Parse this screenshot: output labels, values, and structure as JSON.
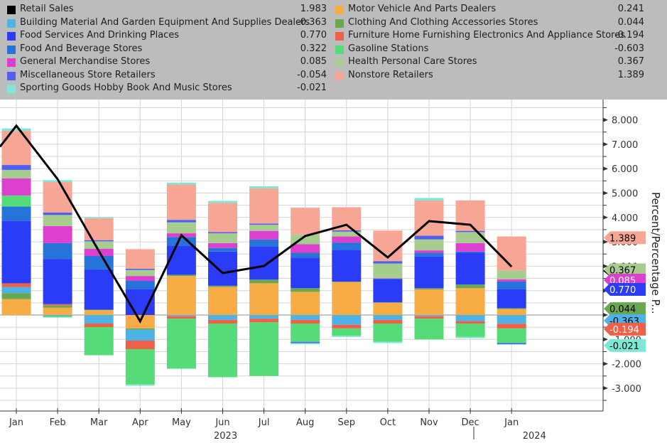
{
  "chart_data": {
    "type": "bar",
    "subtype": "stacked-bar-with-line",
    "title": "",
    "ylabel": "Percent/Percentage P...",
    "xlabel": "",
    "ylim": [
      -3.9,
      8.8
    ],
    "yticks": [
      -3,
      -2,
      -1,
      0,
      1,
      2,
      3,
      4,
      5,
      6,
      7,
      8
    ],
    "ytick_labels": [
      "-3.000",
      "-2.000",
      "-1.000",
      "0.000",
      "1.000",
      "2.000",
      "3.000",
      "4.000",
      "5.000",
      "6.000",
      "7.000",
      "8.000"
    ],
    "grid": true,
    "legend_position": "top",
    "categories": [
      "Jan",
      "Feb",
      "Mar",
      "Apr",
      "May",
      "Jun",
      "Jul",
      "Aug",
      "Sep",
      "Oct",
      "Nov",
      "Dec",
      "Jan"
    ],
    "year_labels": [
      {
        "label": "2023",
        "at_index": 5.5
      },
      {
        "label": "2024",
        "at_index": 13
      }
    ],
    "line": {
      "name": "Retail Sales",
      "color": "#000000",
      "latest": "1.983",
      "values": [
        7.76,
        5.57,
        2.62,
        -0.26,
        3.27,
        1.72,
        2.01,
        3.24,
        3.7,
        2.36,
        3.85,
        3.7,
        1.98
      ]
    },
    "series": [
      {
        "name": "Motor Vehicle And Parts Dealers",
        "color": "#f8ac46",
        "latest": "0.241",
        "flag_text_color": "#000000",
        "values": [
          0.65,
          0.3,
          0.2,
          -0.55,
          1.6,
          1.15,
          1.3,
          0.95,
          1.35,
          0.5,
          1.05,
          1.1,
          0.24
        ]
      },
      {
        "name": "Clothing And Clothing Accessories Stores",
        "color": "#6aa84f",
        "latest": "0.044",
        "flag_text_color": "#000000",
        "values": [
          0.25,
          0.1,
          0.02,
          -0.05,
          0.05,
          0.05,
          0.15,
          0.15,
          0.02,
          0.02,
          0.05,
          0.15,
          0.04
        ]
      },
      {
        "name": "Building Material And Garden Equipment And Supplies Dealers",
        "color": "#4db3e6",
        "latest": "-0.363",
        "flag_text_color": "#000000",
        "values": [
          0.25,
          -0.05,
          -0.35,
          -0.45,
          -0.05,
          -0.2,
          -0.15,
          -0.2,
          -0.4,
          -0.2,
          -0.05,
          -0.25,
          -0.36
        ]
      },
      {
        "name": "Furniture Home Furnishing Electronics And Appliance Stores",
        "color": "#ef6048",
        "latest": "-0.194",
        "flag_text_color": "#ffffff",
        "values": [
          0.15,
          0.05,
          -0.15,
          -0.35,
          -0.1,
          -0.15,
          -0.15,
          -0.15,
          -0.15,
          -0.15,
          -0.1,
          -0.1,
          -0.19
        ]
      },
      {
        "name": "Food Services And Drinking Places",
        "color": "#2a3cf5",
        "latest": "0.770",
        "flag_text_color": "#ffffff",
        "values": [
          2.55,
          1.85,
          1.65,
          1.05,
          1.2,
          1.4,
          1.35,
          1.25,
          1.3,
          0.95,
          1.3,
          1.3,
          0.77
        ]
      },
      {
        "name": "Food And Beverage Stores",
        "color": "#2673d9",
        "latest": "0.322",
        "flag_text_color": "#ffffff",
        "values": [
          0.6,
          0.65,
          0.55,
          0.35,
          0.35,
          0.15,
          0.3,
          0.2,
          0.3,
          0.02,
          0.15,
          0.05,
          0.32
        ]
      },
      {
        "name": "Gasoline Stations",
        "color": "#55dc78",
        "latest": "-0.603",
        "flag_text_color": "#000000",
        "values": [
          0.45,
          -0.05,
          -1.15,
          -1.45,
          -2.05,
          -2.2,
          -2.2,
          -0.75,
          -0.3,
          -0.75,
          -0.85,
          -0.55,
          -0.6
        ]
      },
      {
        "name": "General Merchandise Stores",
        "color": "#dd3fcf",
        "latest": "0.085",
        "flag_text_color": "#ffffff",
        "values": [
          0.7,
          0.7,
          0.3,
          0.2,
          0.15,
          0.2,
          0.35,
          0.35,
          0.25,
          0.02,
          0.1,
          0.35,
          0.09
        ]
      },
      {
        "name": "Health Personal Care Stores",
        "color": "#a6cc8e",
        "latest": "0.367",
        "flag_text_color": "#000000",
        "values": [
          0.35,
          0.45,
          0.3,
          0.25,
          0.45,
          0.4,
          0.25,
          0.4,
          0.2,
          0.6,
          0.45,
          0.45,
          0.37
        ]
      },
      {
        "name": "Miscellaneous Store Retailers",
        "color": "#4f5ff0",
        "latest": "-0.054",
        "flag_text_color": "#ffffff",
        "values": [
          0.2,
          0.1,
          0.05,
          0.05,
          0.1,
          0.05,
          0.05,
          -0.05,
          0.05,
          0.1,
          0.15,
          0.05,
          -0.05
        ]
      },
      {
        "name": "Nonstore Retailers",
        "color": "#f7a595",
        "latest": "1.389",
        "flag_text_color": "#000000",
        "values": [
          1.4,
          1.25,
          0.9,
          0.8,
          1.45,
          1.2,
          1.45,
          1.1,
          0.95,
          1.25,
          1.45,
          1.25,
          1.39
        ]
      },
      {
        "name": "Sporting Goods Hobby Book And Music Stores",
        "color": "#7de8d6",
        "latest": "-0.021",
        "flag_text_color": "#000000",
        "values": [
          0.1,
          0.08,
          0.05,
          -0.05,
          0.08,
          0.08,
          0.08,
          -0.05,
          -0.05,
          -0.05,
          0.1,
          -0.05,
          -0.02
        ]
      }
    ],
    "legend_left": [
      "Retail Sales",
      "Building Material And Garden Equipment And Supplies Dealers",
      "Food Services And Drinking Places",
      "Food And Beverage Stores",
      "General Merchandise Stores",
      "Miscellaneous Store Retailers",
      "Sporting Goods Hobby Book And Music Stores"
    ],
    "legend_right": [
      "Motor Vehicle And Parts Dealers",
      "Clothing And Clothing Accessories Stores",
      "Furniture Home Furnishing Electronics And Appliance Stores",
      "Gasoline Stations",
      "Health Personal Care Stores",
      "Nonstore Retailers"
    ]
  }
}
